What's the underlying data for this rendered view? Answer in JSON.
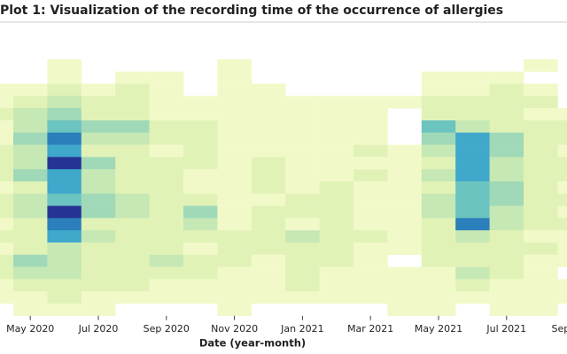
{
  "chart_data": {
    "type": "heatmap",
    "title": "Plot 1: Visualization of the recording time of the occurrence of allergies",
    "x_label": "Date (year-month)",
    "categories": [
      null,
      "May 2020",
      null,
      "Jul 2020",
      null,
      "Sep 2020",
      null,
      "Nov 2020",
      null,
      "Jan 2021",
      null,
      "Mar 2021",
      null,
      "May 2021",
      null,
      "Jul 2021",
      null,
      "Sep 2021"
    ],
    "zlim": [
      1,
      8
    ],
    "colors": [
      "#f2f9c9",
      "#e1f2b7",
      "#c6e8b4",
      "#a0d9b8",
      "#6cc4c0",
      "#3fa8cb",
      "#2b7fba",
      "#253494"
    ],
    "z": [
      [
        null,
        null,
        1,
        null,
        null,
        null,
        null,
        1,
        null,
        null,
        null,
        null,
        null,
        null,
        null,
        null,
        1,
        null
      ],
      [
        null,
        null,
        1,
        null,
        1,
        1,
        null,
        1,
        null,
        null,
        null,
        null,
        null,
        1,
        1,
        1,
        null,
        null
      ],
      [
        1,
        1,
        2,
        1,
        2,
        1,
        null,
        1,
        1,
        null,
        null,
        null,
        null,
        1,
        1,
        2,
        1,
        null
      ],
      [
        1,
        2,
        3,
        2,
        2,
        1,
        1,
        1,
        1,
        1,
        1,
        1,
        1,
        2,
        2,
        2,
        2,
        null
      ],
      [
        2,
        3,
        4,
        2,
        2,
        1,
        1,
        1,
        1,
        1,
        1,
        1,
        null,
        2,
        2,
        2,
        1,
        1
      ],
      [
        1,
        3,
        5,
        4,
        4,
        2,
        2,
        1,
        1,
        1,
        1,
        1,
        null,
        5,
        3,
        2,
        2,
        2
      ],
      [
        1,
        4,
        7,
        3,
        3,
        2,
        2,
        1,
        1,
        1,
        1,
        1,
        null,
        4,
        6,
        4,
        2,
        2
      ],
      [
        2,
        3,
        6,
        2,
        2,
        1,
        2,
        1,
        1,
        1,
        1,
        2,
        1,
        3,
        6,
        4,
        2,
        1
      ],
      [
        2,
        3,
        8,
        4,
        2,
        2,
        2,
        1,
        2,
        1,
        1,
        1,
        1,
        2,
        6,
        3,
        2,
        2
      ],
      [
        2,
        4,
        6,
        3,
        2,
        2,
        1,
        1,
        2,
        1,
        1,
        2,
        1,
        3,
        6,
        3,
        2,
        2
      ],
      [
        1,
        2,
        6,
        3,
        2,
        2,
        1,
        1,
        2,
        1,
        2,
        1,
        1,
        2,
        5,
        4,
        2,
        1
      ],
      [
        2,
        3,
        5,
        4,
        3,
        2,
        2,
        1,
        1,
        2,
        2,
        1,
        1,
        3,
        5,
        4,
        2,
        2
      ],
      [
        2,
        3,
        8,
        4,
        3,
        2,
        4,
        1,
        2,
        2,
        2,
        1,
        1,
        3,
        5,
        3,
        2,
        1
      ],
      [
        1,
        2,
        7,
        2,
        2,
        2,
        3,
        1,
        2,
        1,
        2,
        1,
        1,
        2,
        7,
        3,
        2,
        2
      ],
      [
        2,
        2,
        6,
        3,
        2,
        2,
        2,
        2,
        2,
        3,
        2,
        2,
        1,
        2,
        3,
        2,
        1,
        1
      ],
      [
        1,
        2,
        3,
        2,
        2,
        2,
        1,
        2,
        2,
        2,
        2,
        1,
        1,
        2,
        2,
        2,
        2,
        1
      ],
      [
        2,
        4,
        3,
        2,
        2,
        3,
        2,
        2,
        1,
        2,
        2,
        1,
        null,
        2,
        2,
        2,
        1,
        1
      ],
      [
        2,
        3,
        3,
        2,
        2,
        2,
        2,
        1,
        1,
        2,
        1,
        1,
        1,
        1,
        3,
        2,
        1,
        null
      ],
      [
        1,
        2,
        2,
        2,
        2,
        1,
        1,
        1,
        1,
        2,
        1,
        1,
        1,
        1,
        2,
        1,
        1,
        1
      ],
      [
        1,
        1,
        2,
        1,
        1,
        1,
        1,
        1,
        1,
        1,
        1,
        1,
        1,
        1,
        1,
        1,
        1,
        1
      ],
      [
        null,
        1,
        1,
        1,
        null,
        null,
        null,
        1,
        null,
        null,
        null,
        null,
        1,
        1,
        null,
        1,
        1,
        null
      ]
    ]
  }
}
